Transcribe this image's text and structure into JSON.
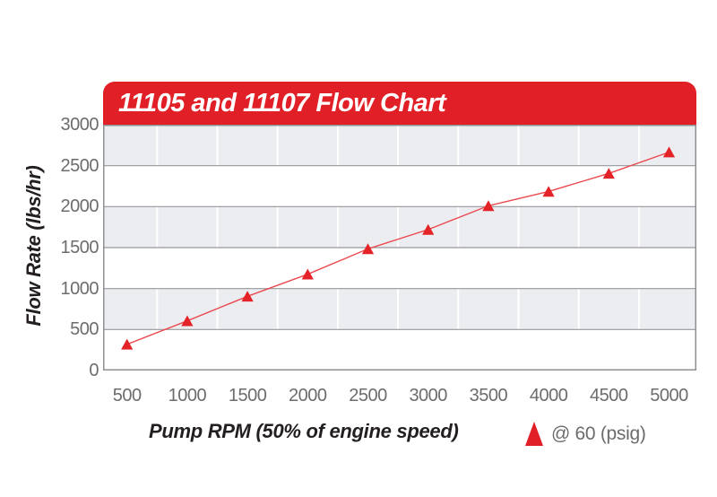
{
  "title_bar": {
    "title": "11105 and 11107 Flow Chart"
  },
  "axes": {
    "y_title": "Flow Rate (lbs/hr)",
    "x_title": "Pump RPM (50% of engine speed)"
  },
  "legend": {
    "label": "@ 60 (psig)",
    "marker": "triangle-icon"
  },
  "colors": {
    "brand_red": "#e11f26",
    "marker_red": "#e42328",
    "line_red": "#ea4a50",
    "band_gray": "#ecedf1",
    "grid_line": "#95979a",
    "plot_border": "#8e9093",
    "tick_text": "#6a6c6e",
    "axis_title_text": "#231f20",
    "title_text": "#ffffff"
  },
  "chart_data": {
    "type": "line",
    "title": "11105 and 11107 Flow Chart",
    "xlabel": "Pump RPM (50% of engine speed)",
    "ylabel": "Flow Rate (lbs/hr)",
    "x": [
      500,
      1000,
      1500,
      2000,
      2500,
      3000,
      3500,
      4000,
      4500,
      5000
    ],
    "xticks": [
      500,
      1000,
      1500,
      2000,
      2500,
      3000,
      3500,
      4000,
      4500,
      5000
    ],
    "yticks": [
      0,
      500,
      1000,
      1500,
      2000,
      2500,
      3000
    ],
    "ylim": [
      0,
      3000
    ],
    "series": [
      {
        "name": "@ 60 (psig)",
        "marker": "triangle",
        "values": [
          320,
          605,
          905,
          1175,
          1485,
          1720,
          2010,
          2185,
          2405,
          2665
        ]
      }
    ],
    "grid": "horizontal lines every 500 with alternating gray bands and white vertical lines between ticks",
    "legend_position": "bottom-right below plot"
  }
}
